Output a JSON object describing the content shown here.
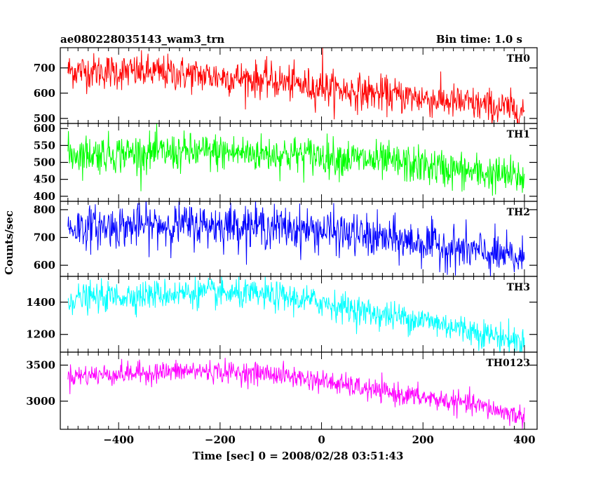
{
  "chart_data": {
    "type": "line",
    "header_left": "ae080228035143_wam3_trn",
    "header_right": "Bin time: 1.0 s",
    "xlabel": "Time [sec] 0 = 2008/02/28 03:51:43",
    "ylabel": "Counts/sec",
    "xlim": [
      -515,
      425
    ],
    "xticks": [
      -400,
      -200,
      0,
      200,
      400
    ],
    "grid": false,
    "x_range": [
      -500,
      400
    ],
    "panels": [
      {
        "name": "TH0",
        "color": "#ff0000",
        "ylim": [
          480,
          780
        ],
        "yticks": [
          500,
          600,
          700
        ],
        "trend": [
          [
            -500,
            690
          ],
          [
            -300,
            680
          ],
          [
            -100,
            650
          ],
          [
            0,
            620
          ],
          [
            100,
            600
          ],
          [
            200,
            580
          ],
          [
            300,
            555
          ],
          [
            400,
            530
          ]
        ],
        "noise": 35,
        "spike": {
          "x": 2,
          "y": 780
        }
      },
      {
        "name": "TH1",
        "color": "#00ff00",
        "ylim": [
          385,
          615
        ],
        "yticks": [
          400,
          450,
          500,
          550,
          600
        ],
        "trend": [
          [
            -500,
            525
          ],
          [
            -200,
            530
          ],
          [
            0,
            520
          ],
          [
            100,
            505
          ],
          [
            200,
            490
          ],
          [
            300,
            470
          ],
          [
            400,
            455
          ]
        ],
        "noise": 28
      },
      {
        "name": "TH2",
        "color": "#0000ff",
        "ylim": [
          560,
          830
        ],
        "yticks": [
          600,
          700,
          800
        ],
        "trend": [
          [
            -500,
            735
          ],
          [
            -300,
            745
          ],
          [
            -150,
            745
          ],
          [
            0,
            725
          ],
          [
            100,
            700
          ],
          [
            200,
            680
          ],
          [
            300,
            650
          ],
          [
            400,
            620
          ]
        ],
        "noise": 38
      },
      {
        "name": "TH3",
        "color": "#00ffff",
        "ylim": [
          1090,
          1560
        ],
        "yticks": [
          1200,
          1400
        ],
        "trend": [
          [
            -500,
            1420
          ],
          [
            -250,
            1460
          ],
          [
            -100,
            1440
          ],
          [
            0,
            1400
          ],
          [
            100,
            1330
          ],
          [
            200,
            1290
          ],
          [
            300,
            1220
          ],
          [
            400,
            1150
          ]
        ],
        "noise": 45
      },
      {
        "name": "TH0123",
        "color": "#ff00ff",
        "ylim": [
          2610,
          3680
        ],
        "yticks": [
          3000,
          3500
        ],
        "trend": [
          [
            -500,
            3350
          ],
          [
            -250,
            3420
          ],
          [
            -100,
            3380
          ],
          [
            0,
            3280
          ],
          [
            100,
            3150
          ],
          [
            200,
            3050
          ],
          [
            300,
            2950
          ],
          [
            400,
            2780
          ]
        ],
        "noise": 75
      }
    ]
  }
}
